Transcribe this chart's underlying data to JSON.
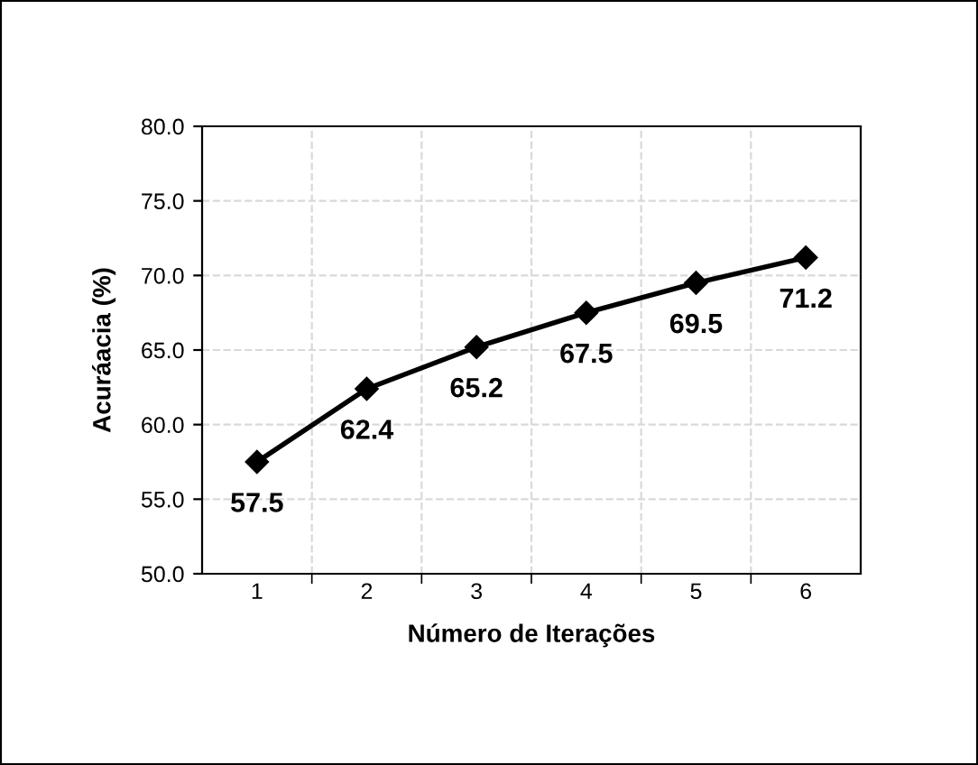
{
  "chart_data": {
    "type": "line",
    "xlabel": "Número de Iterações",
    "ylabel": "Acuráacia (%)",
    "categories": [
      "1",
      "2",
      "3",
      "4",
      "5",
      "6"
    ],
    "series": [
      {
        "color": "#000000",
        "values": [
          57.5,
          62.4,
          65.2,
          67.5,
          69.5,
          71.2
        ]
      }
    ],
    "ylim": [
      50,
      80
    ],
    "yticks": [
      {
        "value": 50,
        "label": "50.0"
      },
      {
        "value": 55,
        "label": "55.0"
      },
      {
        "value": 60,
        "label": "60.0"
      },
      {
        "value": 65,
        "label": "65.0"
      },
      {
        "value": 70,
        "label": "70.0"
      },
      {
        "value": 75,
        "label": "75.0"
      },
      {
        "value": 80,
        "label": "80.0"
      }
    ],
    "grid": true,
    "marker": "diamond",
    "line_style": "solid",
    "data_labels": true
  }
}
